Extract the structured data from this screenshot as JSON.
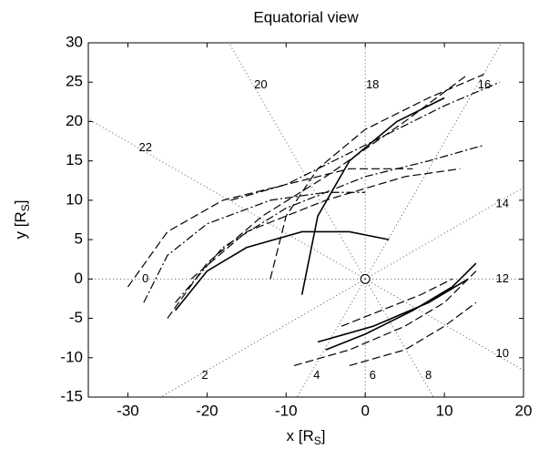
{
  "chart_data": {
    "type": "line",
    "title": "Equatorial view",
    "xlabel": [
      "x [R",
      "S",
      "]"
    ],
    "ylabel": [
      "y [R",
      "S",
      "]"
    ],
    "xlim": [
      -35,
      20
    ],
    "ylim": [
      -15,
      30
    ],
    "xticks": [
      -30,
      -20,
      -10,
      0,
      10,
      20
    ],
    "yticks": [
      -15,
      -10,
      -5,
      0,
      5,
      10,
      15,
      20,
      25,
      30
    ],
    "local_time_labels": [
      0,
      2,
      4,
      6,
      8,
      10,
      12,
      14,
      16,
      18,
      20,
      22
    ],
    "color": "#000000",
    "series": [
      {
        "style": "dashed",
        "x": [
          -25,
          -20,
          -13,
          -5,
          5,
          13
        ],
        "y": [
          -5,
          2,
          8,
          13,
          20,
          26
        ]
      },
      {
        "style": "dashdot",
        "x": [
          -24,
          -18,
          -10,
          0,
          8,
          15
        ],
        "y": [
          -3,
          4,
          9,
          13,
          15,
          17
        ]
      },
      {
        "style": "dashed",
        "x": [
          -22,
          -15,
          -5,
          5,
          12
        ],
        "y": [
          0,
          6,
          10,
          13,
          14
        ]
      },
      {
        "style": "solid",
        "x": [
          -24,
          -20,
          -15,
          -8,
          -2,
          3
        ],
        "y": [
          -4,
          1,
          4,
          6,
          6,
          5
        ]
      },
      {
        "style": "dashdot",
        "x": [
          -28,
          -25,
          -20,
          -12,
          -5,
          0
        ],
        "y": [
          -3,
          3,
          7,
          10,
          11,
          11
        ]
      },
      {
        "style": "dashed",
        "x": [
          -30,
          -25,
          -18,
          -10,
          -2,
          6
        ],
        "y": [
          -1,
          6,
          10,
          12,
          14,
          14
        ]
      },
      {
        "style": "dashed",
        "x": [
          -12,
          -10,
          -6,
          0,
          8,
          15
        ],
        "y": [
          0,
          8,
          14,
          19,
          23,
          26
        ]
      },
      {
        "style": "solid",
        "x": [
          -8,
          -6,
          -2,
          4,
          10
        ],
        "y": [
          -2,
          8,
          15,
          20,
          23
        ]
      },
      {
        "style": "dashdot",
        "x": [
          -17,
          -10,
          0,
          10,
          17
        ],
        "y": [
          10,
          12,
          17,
          22,
          25
        ]
      },
      {
        "style": "dashed",
        "x": [
          -9,
          -2,
          5,
          10,
          14
        ],
        "y": [
          -11,
          -9,
          -6,
          -3,
          1
        ]
      },
      {
        "style": "solid",
        "x": [
          -5,
          0,
          6,
          11,
          14
        ],
        "y": [
          -9,
          -7,
          -4,
          -1,
          2
        ]
      },
      {
        "style": "dashed",
        "x": [
          -3,
          2,
          7,
          11
        ],
        "y": [
          -6,
          -4,
          -2,
          0
        ]
      },
      {
        "style": "solid",
        "x": [
          -6,
          1,
          8,
          13
        ],
        "y": [
          -8,
          -6,
          -3,
          0
        ]
      },
      {
        "style": "dashed",
        "x": [
          -2,
          5,
          10,
          14
        ],
        "y": [
          -11,
          -9,
          -6,
          -3
        ]
      }
    ]
  }
}
